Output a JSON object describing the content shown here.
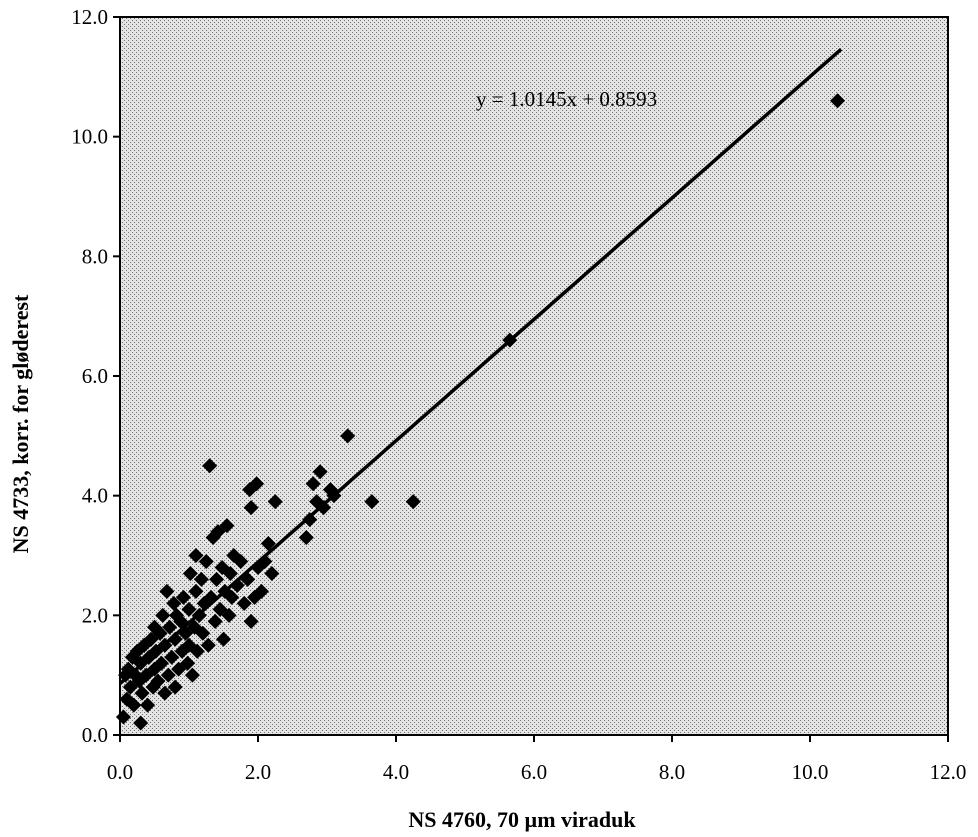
{
  "chart_data": {
    "type": "scatter",
    "xlabel": "NS 4760, 70 µm viraduk",
    "ylabel": "NS 4733, korr. for gløderest",
    "xlim": [
      0,
      12
    ],
    "ylim": [
      0,
      12
    ],
    "xticks": [
      "0.0",
      "2.0",
      "4.0",
      "6.0",
      "8.0",
      "10.0",
      "12.0"
    ],
    "yticks": [
      "0.0",
      "2.0",
      "4.0",
      "6.0",
      "8.0",
      "10.0",
      "12.0"
    ],
    "grid": false,
    "legend": "none",
    "plot_background": "#c8c8c8",
    "marker": "diamond",
    "marker_color": "#000000",
    "trendline": {
      "equation_label": "y = 1.0145x + 0.8593",
      "slope": 1.0145,
      "intercept": 0.8593,
      "x_range": [
        0.0,
        10.45
      ]
    },
    "points": [
      [
        0.05,
        0.3
      ],
      [
        0.08,
        1.0
      ],
      [
        0.1,
        0.6
      ],
      [
        0.12,
        1.1
      ],
      [
        0.15,
        0.8
      ],
      [
        0.18,
        1.3
      ],
      [
        0.2,
        0.5
      ],
      [
        0.22,
        1.0
      ],
      [
        0.25,
        1.4
      ],
      [
        0.28,
        0.9
      ],
      [
        0.3,
        0.2
      ],
      [
        0.3,
        1.2
      ],
      [
        0.32,
        0.7
      ],
      [
        0.35,
        1.5
      ],
      [
        0.38,
        1.0
      ],
      [
        0.4,
        0.5
      ],
      [
        0.42,
        1.3
      ],
      [
        0.45,
        1.6
      ],
      [
        0.48,
        0.8
      ],
      [
        0.5,
        1.1
      ],
      [
        0.5,
        1.8
      ],
      [
        0.52,
        1.4
      ],
      [
        0.55,
        0.9
      ],
      [
        0.58,
        1.7
      ],
      [
        0.6,
        1.2
      ],
      [
        0.62,
        2.0
      ],
      [
        0.65,
        0.7
      ],
      [
        0.65,
        1.5
      ],
      [
        0.68,
        2.4
      ],
      [
        0.7,
        1.0
      ],
      [
        0.72,
        1.8
      ],
      [
        0.75,
        1.3
      ],
      [
        0.78,
        2.2
      ],
      [
        0.8,
        0.8
      ],
      [
        0.8,
        1.6
      ],
      [
        0.82,
        2.0
      ],
      [
        0.85,
        1.1
      ],
      [
        0.88,
        1.9
      ],
      [
        0.9,
        1.4
      ],
      [
        0.92,
        2.3
      ],
      [
        0.95,
        1.7
      ],
      [
        0.98,
        1.2
      ],
      [
        1.0,
        2.1
      ],
      [
        1.0,
        1.5
      ],
      [
        1.02,
        2.7
      ],
      [
        1.05,
        1.0
      ],
      [
        1.08,
        1.8
      ],
      [
        1.1,
        2.4
      ],
      [
        1.1,
        3.0
      ],
      [
        1.12,
        1.4
      ],
      [
        1.15,
        2.0
      ],
      [
        1.18,
        2.6
      ],
      [
        1.2,
        1.7
      ],
      [
        1.22,
        2.2
      ],
      [
        1.25,
        2.9
      ],
      [
        1.28,
        1.5
      ],
      [
        1.3,
        4.5
      ],
      [
        1.32,
        2.3
      ],
      [
        1.35,
        3.3
      ],
      [
        1.38,
        1.9
      ],
      [
        1.4,
        2.6
      ],
      [
        1.42,
        3.4
      ],
      [
        1.45,
        2.1
      ],
      [
        1.48,
        2.8
      ],
      [
        1.5,
        1.6
      ],
      [
        1.52,
        2.4
      ],
      [
        1.55,
        3.5
      ],
      [
        1.58,
        2.0
      ],
      [
        1.6,
        2.7
      ],
      [
        1.62,
        2.3
      ],
      [
        1.65,
        3.0
      ],
      [
        1.7,
        2.5
      ],
      [
        1.75,
        2.9
      ],
      [
        1.8,
        2.2
      ],
      [
        1.85,
        2.6
      ],
      [
        1.88,
        4.1
      ],
      [
        1.9,
        1.9
      ],
      [
        1.9,
        3.8
      ],
      [
        1.95,
        2.3
      ],
      [
        1.98,
        4.2
      ],
      [
        2.0,
        2.8
      ],
      [
        2.05,
        2.4
      ],
      [
        2.1,
        2.9
      ],
      [
        2.15,
        3.2
      ],
      [
        2.2,
        2.7
      ],
      [
        2.25,
        3.9
      ],
      [
        2.7,
        3.3
      ],
      [
        2.75,
        3.6
      ],
      [
        2.8,
        4.2
      ],
      [
        2.85,
        3.9
      ],
      [
        2.9,
        4.4
      ],
      [
        2.95,
        3.8
      ],
      [
        3.05,
        4.1
      ],
      [
        3.1,
        4.0
      ],
      [
        3.3,
        5.0
      ],
      [
        3.65,
        3.9
      ],
      [
        4.25,
        3.9
      ],
      [
        5.65,
        6.6
      ],
      [
        10.4,
        10.6
      ]
    ]
  }
}
